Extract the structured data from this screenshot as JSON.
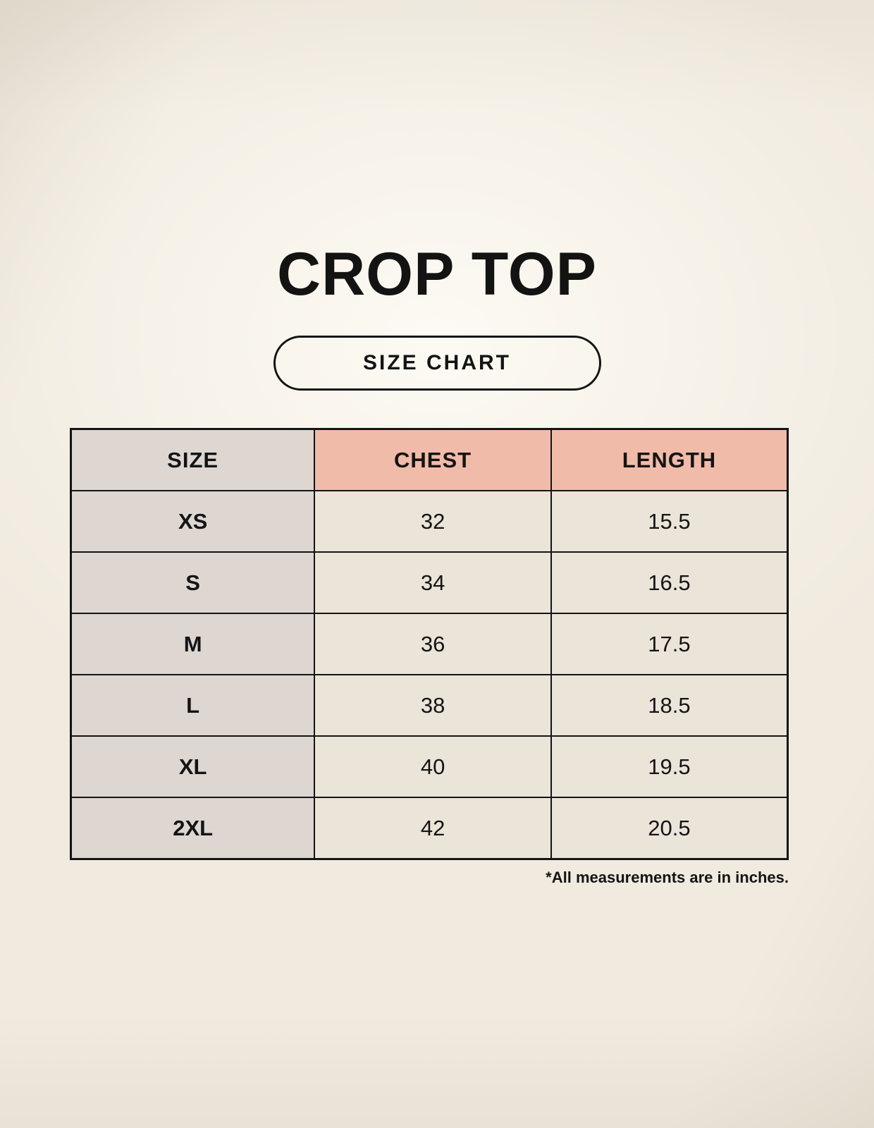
{
  "page": {
    "title": "CROP TOP",
    "badge_label": "SIZE CHART",
    "footnote": "*All measurements are in inches."
  },
  "table": {
    "headers": [
      "SIZE",
      "CHEST",
      "LENGTH"
    ],
    "rows": [
      {
        "size": "XS",
        "chest": "32",
        "length": "15.5"
      },
      {
        "size": "S",
        "chest": "34",
        "length": "16.5"
      },
      {
        "size": "M",
        "chest": "36",
        "length": "17.5"
      },
      {
        "size": "L",
        "chest": "38",
        "length": "18.5"
      },
      {
        "size": "XL",
        "chest": "40",
        "length": "19.5"
      },
      {
        "size": "2XL",
        "chest": "42",
        "length": "20.5"
      }
    ],
    "units": "inches"
  },
  "colors": {
    "background": "#f0eadf",
    "size_column_bg": "#ddd6d1",
    "header_accent_bg": "#f1bbaa",
    "data_cell_bg": "#ebe4d9",
    "border": "#141414",
    "text": "#131313"
  },
  "chart_data": {
    "type": "table",
    "title": "CROP TOP",
    "subtitle": "SIZE CHART",
    "columns": [
      "SIZE",
      "CHEST",
      "LENGTH"
    ],
    "rows": [
      [
        "XS",
        32,
        15.5
      ],
      [
        "S",
        34,
        16.5
      ],
      [
        "M",
        36,
        17.5
      ],
      [
        "L",
        38,
        18.5
      ],
      [
        "XL",
        40,
        19.5
      ],
      [
        "2XL",
        42,
        20.5
      ]
    ],
    "note": "*All measurements are in inches.",
    "units": "inches",
    "legend_position": "none",
    "grid": true
  }
}
